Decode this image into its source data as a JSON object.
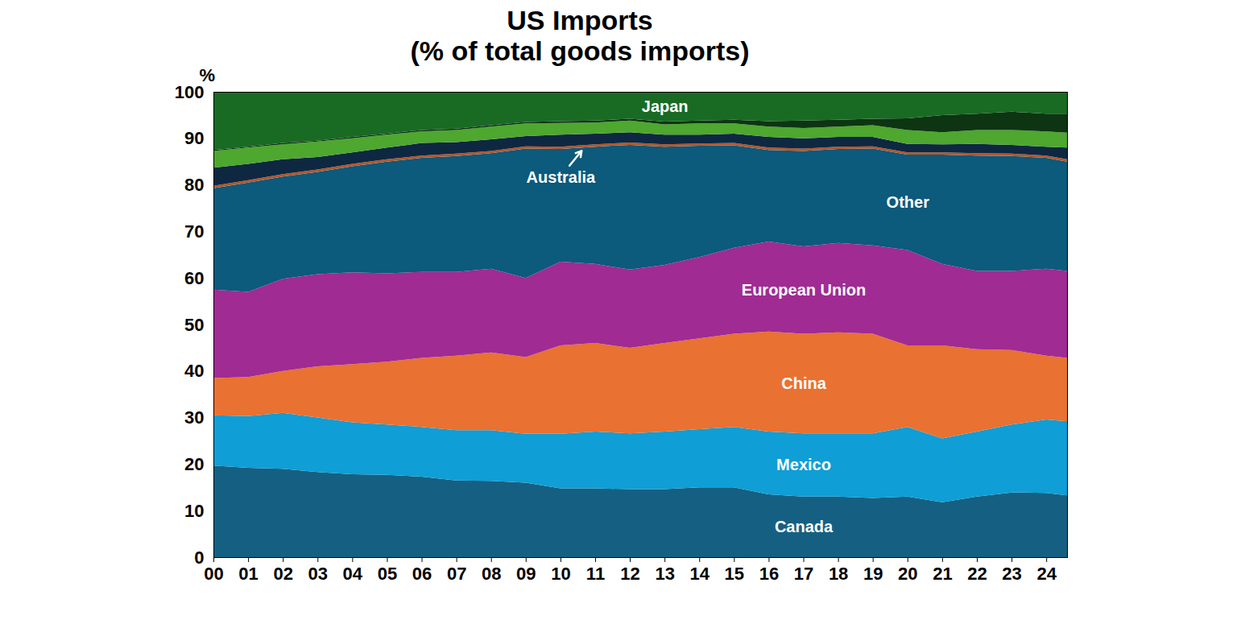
{
  "chart_data": {
    "type": "area",
    "title": "US Imports",
    "subtitle": "(% of total goods imports)",
    "ylabel": "%",
    "stacked": true,
    "grid": false,
    "x": [
      2000,
      2001,
      2002,
      2003,
      2004,
      2005,
      2006,
      2007,
      2008,
      2009,
      2010,
      2011,
      2012,
      2013,
      2014,
      2015,
      2016,
      2017,
      2018,
      2019,
      2020,
      2021,
      2022,
      2023,
      2024,
      2024.6
    ],
    "xlim": [
      2000,
      2024.6
    ],
    "xticks": [
      {
        "value": 2000,
        "label": "00"
      },
      {
        "value": 2001,
        "label": "01"
      },
      {
        "value": 2002,
        "label": "02"
      },
      {
        "value": 2003,
        "label": "03"
      },
      {
        "value": 2004,
        "label": "04"
      },
      {
        "value": 2005,
        "label": "05"
      },
      {
        "value": 2006,
        "label": "06"
      },
      {
        "value": 2007,
        "label": "07"
      },
      {
        "value": 2008,
        "label": "08"
      },
      {
        "value": 2009,
        "label": "09"
      },
      {
        "value": 2010,
        "label": "10"
      },
      {
        "value": 2011,
        "label": "11"
      },
      {
        "value": 2012,
        "label": "12"
      },
      {
        "value": 2013,
        "label": "13"
      },
      {
        "value": 2014,
        "label": "14"
      },
      {
        "value": 2015,
        "label": "15"
      },
      {
        "value": 2016,
        "label": "16"
      },
      {
        "value": 2017,
        "label": "17"
      },
      {
        "value": 2018,
        "label": "18"
      },
      {
        "value": 2019,
        "label": "19"
      },
      {
        "value": 2020,
        "label": "20"
      },
      {
        "value": 2021,
        "label": "21"
      },
      {
        "value": 2022,
        "label": "22"
      },
      {
        "value": 2023,
        "label": "23"
      },
      {
        "value": 2024,
        "label": "24"
      }
    ],
    "ylim": [
      0,
      100
    ],
    "yticks": [
      0,
      10,
      20,
      30,
      40,
      50,
      60,
      70,
      80,
      90,
      100
    ],
    "series": [
      {
        "name": "Canada",
        "color": "#156082",
        "values": [
          19.7,
          19.2,
          19,
          18.3,
          17.8,
          17.7,
          17.3,
          16.5,
          16.4,
          16,
          14.8,
          14.8,
          14.6,
          14.6,
          15,
          15,
          13.5,
          13,
          13,
          12.7,
          13,
          11.8,
          13,
          13.9,
          13.8,
          13.3
        ]
      },
      {
        "name": "Mexico",
        "color": "#0f9ed5",
        "values": [
          10.8,
          11.1,
          12,
          11.7,
          11.2,
          10.8,
          10.7,
          10.8,
          10.9,
          10.5,
          11.7,
          12.2,
          12,
          12.4,
          12.5,
          13,
          13.5,
          13.6,
          13.6,
          13.9,
          15,
          13.7,
          14,
          14.6,
          15.8,
          15.9
        ]
      },
      {
        "name": "China",
        "color": "#e97132",
        "values": [
          8,
          8.4,
          9,
          11,
          12.5,
          13.5,
          14.8,
          16,
          16.7,
          16.5,
          19,
          19,
          18.4,
          19,
          19.5,
          20,
          21.5,
          21.4,
          21.7,
          21.4,
          17.5,
          20,
          17.7,
          16,
          13.7,
          13.6
        ]
      },
      {
        "name": "European Union",
        "color": "#a02b93",
        "values": [
          19,
          18.3,
          19.8,
          19.8,
          19.7,
          19,
          18.5,
          18,
          18,
          17,
          18,
          17,
          16.8,
          16.8,
          17.5,
          18.5,
          19.3,
          18.8,
          19.2,
          19,
          20.5,
          17.5,
          16.8,
          17,
          18.7,
          18.7
        ]
      },
      {
        "name": "Other",
        "color": "#0c5a7c",
        "values": [
          21.8,
          23.5,
          22,
          22,
          22.8,
          24,
          24.5,
          24.9,
          24.8,
          27.8,
          24.2,
          25.2,
          26.8,
          25.4,
          23.9,
          22,
          19.7,
          20.5,
          20.2,
          20.8,
          20.5,
          23.5,
          24.8,
          24.7,
          23.8,
          23.5
        ]
      },
      {
        "name": "Australia",
        "color": "#b5562a",
        "values": [
          0.5,
          0.5,
          0.5,
          0.5,
          0.5,
          0.5,
          0.5,
          0.5,
          0.5,
          0.5,
          0.5,
          0.5,
          0.5,
          0.5,
          0.5,
          0.5,
          0.5,
          0.5,
          0.5,
          0.5,
          0.5,
          0.5,
          0.5,
          0.5,
          0.5,
          0.5
        ]
      },
      {
        "name": null,
        "color": "#0e2841",
        "values": [
          3.9,
          3.5,
          3.2,
          2.7,
          2.5,
          2.5,
          2.7,
          2.5,
          2.5,
          2.2,
          2.6,
          2.3,
          2.2,
          2.1,
          1.9,
          2,
          2.3,
          2.2,
          2.1,
          2,
          1.8,
          1.7,
          2,
          1.9,
          1.9,
          2.5
        ]
      },
      {
        "name": null,
        "color": "#4ea72e",
        "values": [
          3.6,
          3.5,
          3.2,
          3.3,
          3,
          2.8,
          2.5,
          2.6,
          2.7,
          2.7,
          2.5,
          2.4,
          2.5,
          2.2,
          2.4,
          2.2,
          2.2,
          2.2,
          2.2,
          2.5,
          3,
          2.6,
          3,
          3.2,
          3.3,
          3.2
        ]
      },
      {
        "name": null,
        "color": "#0d3512",
        "values": [
          0.2,
          0.2,
          0.3,
          0.2,
          0.3,
          0.2,
          0.3,
          0.3,
          0.3,
          0.3,
          0.4,
          0.4,
          0.4,
          0.6,
          0.6,
          0.8,
          1.2,
          1.6,
          1.5,
          1.4,
          2.5,
          3.7,
          3.5,
          3.9,
          3.8,
          4.1
        ]
      },
      {
        "name": "Japan",
        "color": "#196b24",
        "values": [
          12.5,
          11.8,
          11,
          10.5,
          9.7,
          9,
          8.2,
          7.9,
          7.2,
          6.5,
          6.3,
          6.2,
          5.8,
          6.4,
          6.2,
          6,
          6.3,
          6.2,
          6,
          5.8,
          5.7,
          5,
          4.7,
          4.3,
          4.7,
          4.7
        ]
      }
    ]
  }
}
